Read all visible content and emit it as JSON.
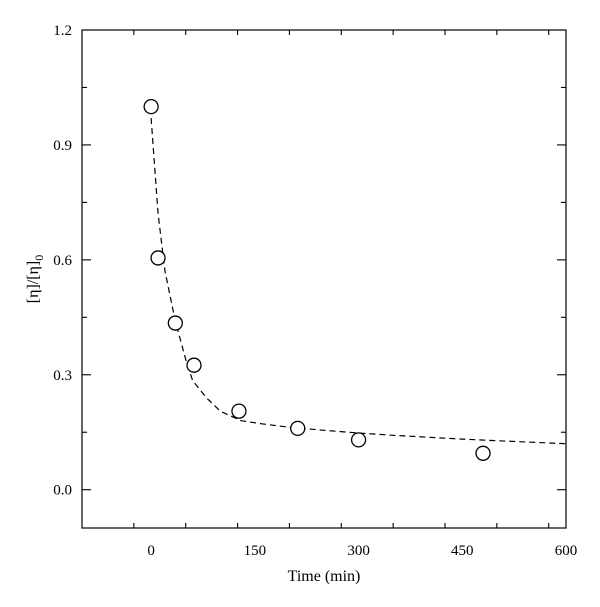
{
  "chart_data": {
    "type": "scatter",
    "xlabel": "Time (min)",
    "ylabel": "[η]/[η]",
    "ylabel_subscript": "0",
    "xlim": [
      -100,
      600
    ],
    "ylim": [
      -0.1,
      1.2
    ],
    "x_ticks": [
      0,
      150,
      300,
      450,
      600
    ],
    "x_tick_labels": [
      "0",
      "150",
      "300",
      "450",
      "600"
    ],
    "y_ticks": [
      0.0,
      0.3,
      0.6,
      0.9,
      1.2
    ],
    "y_tick_labels": [
      "0.0",
      "0.3",
      "0.6",
      "0.9",
      "1.2"
    ],
    "grid": false,
    "points": {
      "x": [
        0,
        10,
        35,
        62,
        127,
        212,
        300,
        480
      ],
      "y": [
        1.0,
        0.605,
        0.435,
        0.325,
        0.205,
        0.16,
        0.13,
        0.095
      ]
    },
    "fit_curve": {
      "style": "dashed",
      "x": [
        0,
        10,
        20,
        35,
        50,
        60,
        80,
        100,
        130,
        160,
        200,
        250,
        300,
        350,
        400,
        450,
        500,
        550,
        600
      ],
      "y": [
        0.97,
        0.72,
        0.57,
        0.44,
        0.34,
        0.285,
        0.24,
        0.205,
        0.18,
        0.172,
        0.163,
        0.155,
        0.148,
        0.142,
        0.137,
        0.132,
        0.128,
        0.124,
        0.12
      ]
    }
  }
}
